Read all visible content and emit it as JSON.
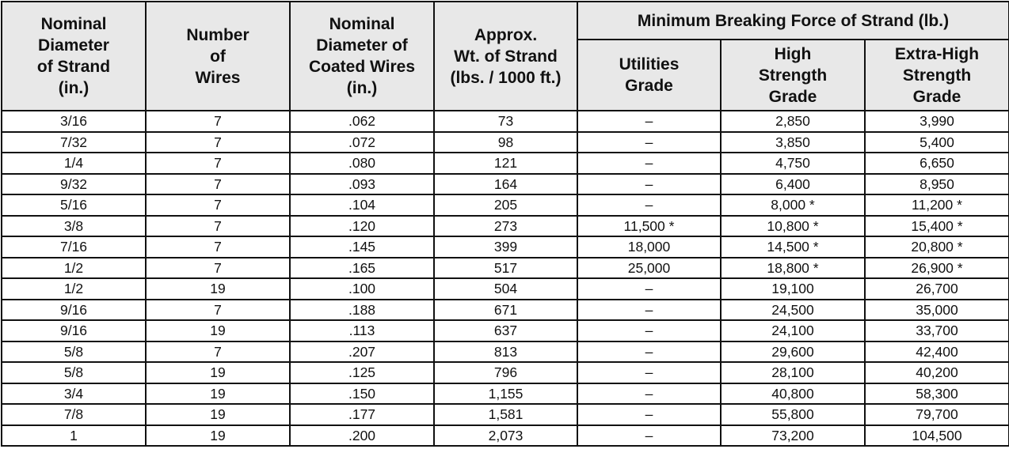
{
  "table": {
    "columns": [
      "Nominal\nDiameter\nof Strand\n(in.)",
      "Number\nof\nWires",
      "Nominal\nDiameter of\nCoated Wires\n(in.)",
      "Approx.\nWt. of Strand\n(lbs. / 1000 ft.)"
    ],
    "group": "Minimum Breaking Force of Strand (lb.)",
    "subcolumns": [
      "Utilities\nGrade",
      "High\nStrength\nGrade",
      "Extra-High\nStrength\nGrade"
    ],
    "rows": [
      [
        "3/16",
        "7",
        ".062",
        "73",
        "–",
        "2,850",
        "3,990"
      ],
      [
        "7/32",
        "7",
        ".072",
        "98",
        "–",
        "3,850",
        "5,400"
      ],
      [
        "1/4",
        "7",
        ".080",
        "121",
        "–",
        "4,750",
        "6,650"
      ],
      [
        "9/32",
        "7",
        ".093",
        "164",
        "–",
        "6,400",
        "8,950"
      ],
      [
        "5/16",
        "7",
        ".104",
        "205",
        "–",
        "8,000 *",
        "11,200 *"
      ],
      [
        "3/8",
        "7",
        ".120",
        "273",
        "11,500 *",
        "10,800 *",
        "15,400 *"
      ],
      [
        "7/16",
        "7",
        ".145",
        "399",
        "18,000",
        "14,500 *",
        "20,800 *"
      ],
      [
        "1/2",
        "7",
        ".165",
        "517",
        "25,000",
        "18,800 *",
        "26,900 *"
      ],
      [
        "1/2",
        "19",
        ".100",
        "504",
        "–",
        "19,100",
        "26,700"
      ],
      [
        "9/16",
        "7",
        ".188",
        "671",
        "–",
        "24,500",
        "35,000"
      ],
      [
        "9/16",
        "19",
        ".113",
        "637",
        "–",
        "24,100",
        "33,700"
      ],
      [
        "5/8",
        "7",
        ".207",
        "813",
        "–",
        "29,600",
        "42,400"
      ],
      [
        "5/8",
        "19",
        ".125",
        "796",
        "–",
        "28,100",
        "40,200"
      ],
      [
        "3/4",
        "19",
        ".150",
        "1,155",
        "–",
        "40,800",
        "58,300"
      ],
      [
        "7/8",
        "19",
        ".177",
        "1,581",
        "–",
        "55,800",
        "79,700"
      ],
      [
        "1",
        "19",
        ".200",
        "2,073",
        "–",
        "73,200",
        "104,500"
      ]
    ]
  }
}
